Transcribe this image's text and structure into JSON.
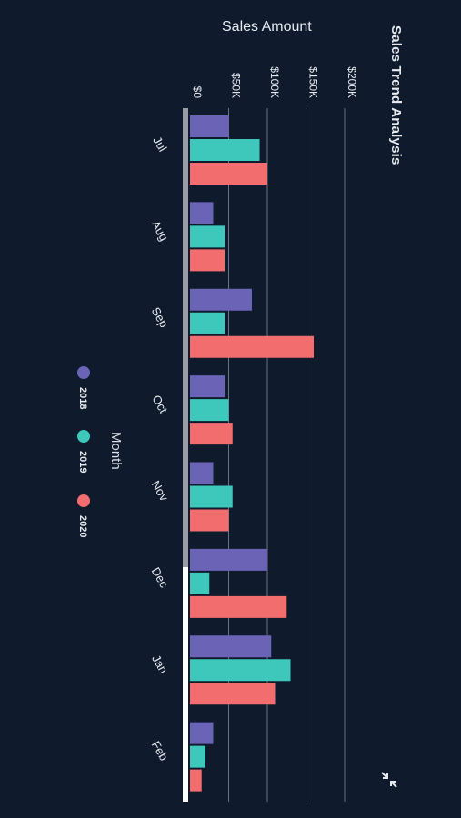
{
  "chart_data": {
    "type": "bar",
    "orientation": "horizontal",
    "title": "Sales Trend Analysis",
    "xlabel": "Sales Amount",
    "ylabel": "Month",
    "categories": [
      "Jul",
      "Aug",
      "Sep",
      "Oct",
      "Nov",
      "Dec",
      "Jan",
      "Feb"
    ],
    "series": [
      {
        "name": "2018",
        "color": "#6b63b5",
        "values": [
          50000,
          30000,
          80000,
          45000,
          30000,
          100000,
          105000,
          30000
        ]
      },
      {
        "name": "2019",
        "color": "#3ec8bb",
        "values": [
          90000,
          45000,
          45000,
          50000,
          55000,
          25000,
          130000,
          20000
        ]
      },
      {
        "name": "2020",
        "color": "#f26d6d",
        "values": [
          100000,
          45000,
          160000,
          55000,
          50000,
          125000,
          110000,
          15000
        ]
      }
    ],
    "xlim": [
      0,
      200000
    ],
    "ticks": [
      {
        "value": 0,
        "label": "$0"
      },
      {
        "value": 50000,
        "label": "$50K"
      },
      {
        "value": 100000,
        "label": "$100K"
      },
      {
        "value": 150000,
        "label": "$150K"
      },
      {
        "value": 200000,
        "label": "$200K"
      }
    ],
    "grid": true,
    "legend_position": "left"
  },
  "colors": {
    "background": "#0f1b2d",
    "grid": "#6a7280",
    "text": "#e6e9ee"
  },
  "icons": {
    "collapse": "collapse-arrows-icon"
  }
}
